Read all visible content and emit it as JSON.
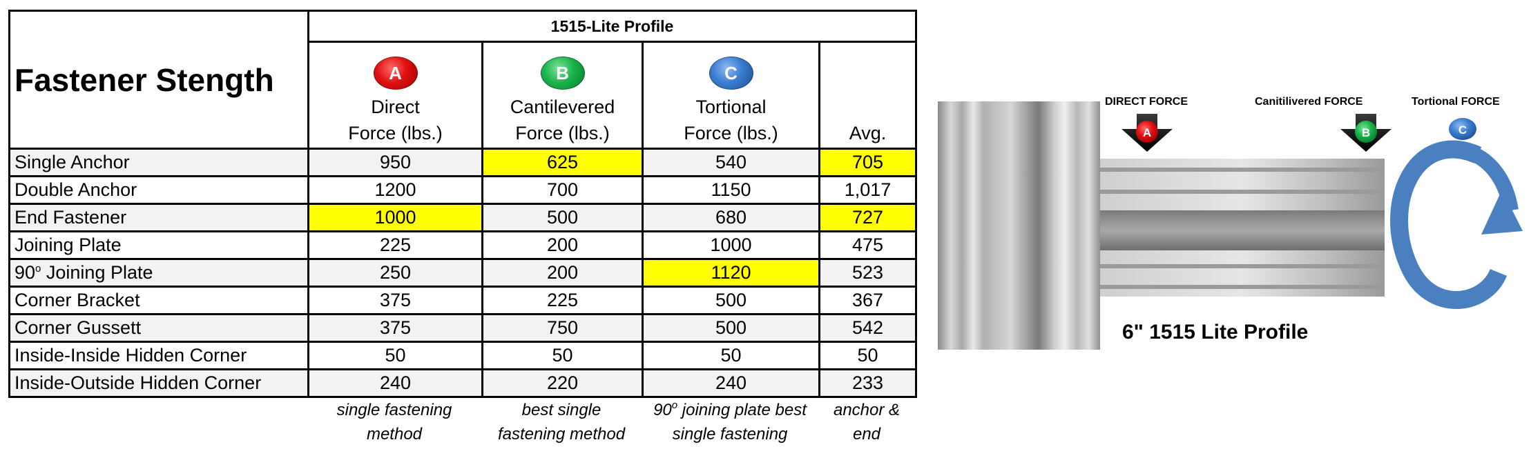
{
  "table": {
    "title": "Fastener Stength",
    "profile_header": "1515-Lite Profile",
    "columns": [
      {
        "badge": "A",
        "line1": "Direct",
        "line2": "Force (lbs.)"
      },
      {
        "badge": "B",
        "line1": "Cantilevered",
        "line2": "Force (lbs.)"
      },
      {
        "badge": "C",
        "line1": "Tortional",
        "line2": "Force (lbs.)"
      }
    ],
    "avg_header": "Avg.",
    "rows": [
      {
        "label": "Single Anchor",
        "a": "950",
        "b": "625",
        "c": "540",
        "avg": "705"
      },
      {
        "label": "Double Anchor",
        "a": "1200",
        "b": "700",
        "c": "1150",
        "avg": "1,017"
      },
      {
        "label": "End Fastener",
        "a": "1000",
        "b": "500",
        "c": "680",
        "avg": "727"
      },
      {
        "label": "Joining Plate",
        "a": "225",
        "b": "200",
        "c": "1000",
        "avg": "475"
      },
      {
        "label_prefix": "90",
        "label_sup": "o",
        "label_suffix": " Joining Plate",
        "a": "250",
        "b": "200",
        "c": "1120",
        "avg": "523"
      },
      {
        "label": "Corner Bracket",
        "a": "375",
        "b": "225",
        "c": "500",
        "avg": "367"
      },
      {
        "label": "Corner Gussett",
        "a": "375",
        "b": "750",
        "c": "500",
        "avg": "542"
      },
      {
        "label": "Inside-Inside Hidden Corner",
        "a": "50",
        "b": "50",
        "c": "50",
        "avg": "50"
      },
      {
        "label": "Inside-Outside Hidden Corner",
        "a": "240",
        "b": "220",
        "c": "240",
        "avg": "233"
      }
    ],
    "highlight_color": "#ffff00",
    "notes": {
      "a": {
        "line1": "single fastening",
        "line2": "method"
      },
      "b": {
        "line1": "best single",
        "line2": "fastening method"
      },
      "c": {
        "line1_prefix": "90",
        "line1_sup": "o",
        "line1_suffix": " joining plate best",
        "line2": "single fastening"
      },
      "avg": {
        "line1": "anchor &",
        "line2": "end"
      }
    }
  },
  "diagram": {
    "direct_force_label": "DIRECT FORCE",
    "cantilevered_force_label": "Canitilivered FORCE",
    "tortional_force_label": "Tortional FORCE",
    "badge_a": "A",
    "badge_b": "B",
    "badge_c": "C",
    "caption": "6\" 1515 Lite Profile",
    "colors": {
      "red": "#e01010",
      "green": "#19b44a",
      "blue": "#3a7dd1",
      "arrow_blue": "#4a7fc0"
    }
  }
}
